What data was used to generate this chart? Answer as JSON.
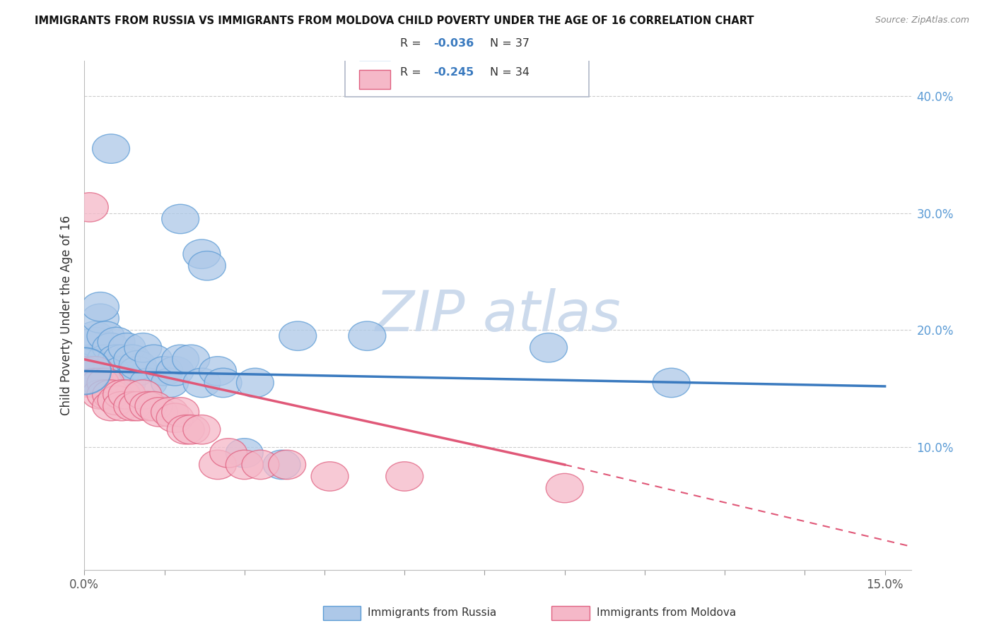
{
  "title": "IMMIGRANTS FROM RUSSIA VS IMMIGRANTS FROM MOLDOVA CHILD POVERTY UNDER THE AGE OF 16 CORRELATION CHART",
  "source": "Source: ZipAtlas.com",
  "ylabel": "Child Poverty Under the Age of 16",
  "xlim": [
    0.0,
    0.155
  ],
  "ylim": [
    -0.005,
    0.43
  ],
  "xtick_positions": [
    0.0,
    0.015,
    0.03,
    0.045,
    0.06,
    0.075,
    0.09,
    0.105,
    0.12,
    0.135,
    0.15
  ],
  "xtick_labels_show": {
    "0.0": "0.0%",
    "0.15": "15.0%"
  },
  "yticks": [
    0.0,
    0.1,
    0.2,
    0.3,
    0.4
  ],
  "ytick_labels": [
    "",
    "10.0%",
    "20.0%",
    "30.0%",
    "40.0%"
  ],
  "russia_R": "-0.036",
  "russia_N": "37",
  "moldova_R": "-0.245",
  "moldova_N": "34",
  "russia_face": "#adc8e8",
  "russia_edge": "#5b9bd5",
  "moldova_face": "#f5b8c8",
  "moldova_edge": "#e06080",
  "russia_line_color": "#3a7abf",
  "moldova_line_color": "#e05878",
  "watermark_color": "#ccdaec",
  "russia_points": [
    [
      0.0,
      0.165
    ],
    [
      0.001,
      0.175
    ],
    [
      0.002,
      0.19
    ],
    [
      0.002,
      0.195
    ],
    [
      0.003,
      0.21
    ],
    [
      0.003,
      0.22
    ],
    [
      0.004,
      0.195
    ],
    [
      0.004,
      0.175
    ],
    [
      0.005,
      0.185
    ],
    [
      0.005,
      0.165
    ],
    [
      0.006,
      0.19
    ],
    [
      0.006,
      0.175
    ],
    [
      0.007,
      0.175
    ],
    [
      0.007,
      0.165
    ],
    [
      0.008,
      0.185
    ],
    [
      0.008,
      0.155
    ],
    [
      0.009,
      0.175
    ],
    [
      0.01,
      0.165
    ],
    [
      0.01,
      0.17
    ],
    [
      0.011,
      0.185
    ],
    [
      0.012,
      0.155
    ],
    [
      0.013,
      0.175
    ],
    [
      0.015,
      0.165
    ],
    [
      0.016,
      0.155
    ],
    [
      0.017,
      0.165
    ],
    [
      0.018,
      0.175
    ],
    [
      0.02,
      0.175
    ],
    [
      0.022,
      0.155
    ],
    [
      0.025,
      0.165
    ],
    [
      0.026,
      0.155
    ],
    [
      0.03,
      0.095
    ],
    [
      0.032,
      0.155
    ],
    [
      0.037,
      0.085
    ],
    [
      0.04,
      0.195
    ],
    [
      0.053,
      0.195
    ],
    [
      0.087,
      0.185
    ],
    [
      0.11,
      0.155
    ]
  ],
  "moldova_points": [
    [
      0.0,
      0.165
    ],
    [
      0.001,
      0.155
    ],
    [
      0.002,
      0.165
    ],
    [
      0.002,
      0.155
    ],
    [
      0.003,
      0.155
    ],
    [
      0.003,
      0.145
    ],
    [
      0.004,
      0.155
    ],
    [
      0.004,
      0.145
    ],
    [
      0.005,
      0.145
    ],
    [
      0.005,
      0.135
    ],
    [
      0.006,
      0.14
    ],
    [
      0.007,
      0.145
    ],
    [
      0.007,
      0.135
    ],
    [
      0.008,
      0.145
    ],
    [
      0.009,
      0.135
    ],
    [
      0.01,
      0.135
    ],
    [
      0.011,
      0.145
    ],
    [
      0.012,
      0.135
    ],
    [
      0.013,
      0.135
    ],
    [
      0.014,
      0.13
    ],
    [
      0.016,
      0.13
    ],
    [
      0.017,
      0.125
    ],
    [
      0.018,
      0.13
    ],
    [
      0.019,
      0.115
    ],
    [
      0.02,
      0.115
    ],
    [
      0.022,
      0.115
    ],
    [
      0.025,
      0.085
    ],
    [
      0.027,
      0.095
    ],
    [
      0.03,
      0.085
    ],
    [
      0.033,
      0.085
    ],
    [
      0.038,
      0.085
    ],
    [
      0.046,
      0.075
    ],
    [
      0.06,
      0.075
    ],
    [
      0.09,
      0.065
    ]
  ],
  "special_russia_points": [
    [
      0.005,
      0.355
    ],
    [
      0.018,
      0.295
    ],
    [
      0.022,
      0.265
    ],
    [
      0.023,
      0.255
    ]
  ],
  "special_moldova_points": [
    [
      0.001,
      0.305
    ]
  ],
  "russia_line": [
    0.0,
    0.165,
    0.15,
    0.152
  ],
  "moldova_line_solid": [
    0.0,
    0.175,
    0.09,
    0.085
  ],
  "moldova_line_dashed": [
    0.09,
    0.085,
    0.155,
    0.015
  ],
  "legend_russia_text": "R = -0.036  N = 37",
  "legend_moldova_text": "R = -0.245  N = 34",
  "bottom_legend_russia": "Immigrants from Russia",
  "bottom_legend_moldova": "Immigrants from Moldova"
}
